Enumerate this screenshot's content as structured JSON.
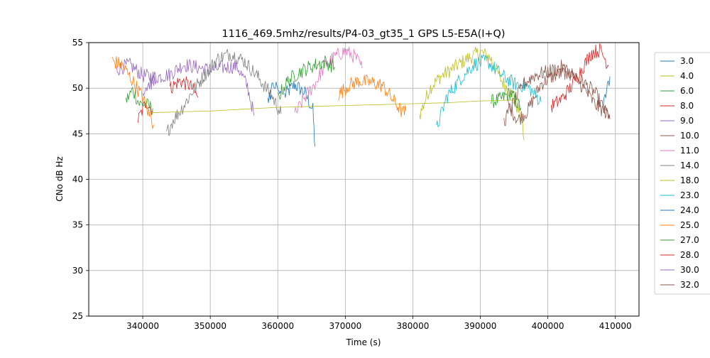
{
  "chart_data": {
    "type": "line",
    "title": "1116_469.5mhz/results/P4-03_gt35_1 GPS L5-E5A(I+Q)",
    "xlabel": "Time (s)",
    "ylabel": "CNo dB Hz",
    "xlim": [
      332000,
      413500
    ],
    "ylim": [
      25,
      55
    ],
    "xticks": [
      340000,
      350000,
      360000,
      370000,
      380000,
      390000,
      400000,
      410000
    ],
    "yticks": [
      25,
      30,
      35,
      40,
      45,
      50,
      55
    ],
    "grid": true,
    "legend_position": "right, outside plot",
    "series": [
      {
        "name": "3.0",
        "color": "#1f77b4",
        "segments": [
          [
            [
              361000,
              49.2
            ],
            [
              362500,
              50.4
            ],
            [
              364000,
              49.5
            ],
            [
              365200,
              47.6
            ],
            [
              365500,
              43.6
            ]
          ],
          [
            [
              408200,
              48
            ],
            [
              409200,
              51.3
            ]
          ]
        ]
      },
      {
        "name": "4.0",
        "color": "#bcbd22",
        "segments": [
          [
            [
              381000,
              47
            ],
            [
              382500,
              50
            ],
            [
              384000,
              51.2
            ],
            [
              386000,
              52.2
            ],
            [
              388000,
              53.2
            ],
            [
              390000,
              54
            ],
            [
              391500,
              53.3
            ],
            [
              393000,
              51
            ],
            [
              394500,
              49.5
            ],
            [
              396000,
              47
            ],
            [
              396500,
              44.3
            ]
          ]
        ]
      },
      {
        "name": "6.0",
        "color": "#2ca02c",
        "segments": [
          [
            [
              337500,
              48.6
            ],
            [
              338500,
              49.8
            ],
            [
              339500,
              48.3
            ],
            [
              340500,
              48.2
            ],
            [
              341500,
              47.8
            ]
          ],
          [
            [
              391500,
              48.5
            ],
            [
              393000,
              48.8
            ],
            [
              394500,
              49.5
            ],
            [
              396000,
              47.8
            ]
          ]
        ]
      },
      {
        "name": "8.0",
        "color": "#d62728",
        "segments": [
          [
            [
              339300,
              46.5
            ],
            [
              340500,
              48.5
            ],
            [
              341500,
              47.5
            ]
          ],
          [
            [
              344000,
              50
            ],
            [
              345500,
              50.8
            ],
            [
              347000,
              50.3
            ],
            [
              348200,
              49
            ]
          ]
        ]
      },
      {
        "name": "9.0",
        "color": "#9467bd",
        "segments": [
          [
            [
              336000,
              52
            ],
            [
              338000,
              52.6
            ],
            [
              340000,
              51.4
            ],
            [
              342000,
              51.2
            ],
            [
              344000,
              51.5
            ],
            [
              346000,
              52.6
            ],
            [
              348000,
              52.3
            ],
            [
              350000,
              52
            ],
            [
              352000,
              52.3
            ],
            [
              354000,
              52.4
            ],
            [
              355500,
              50.2
            ],
            [
              356500,
              47
            ]
          ]
        ]
      },
      {
        "name": "10.0",
        "color": "#8c564b",
        "segments": [
          [
            [
              394000,
              48.4
            ],
            [
              395500,
              46.5
            ],
            [
              397000,
              47.5
            ],
            [
              399000,
              50.5
            ],
            [
              401000,
              51.4
            ],
            [
              403000,
              51.8
            ],
            [
              405000,
              50.8
            ],
            [
              407000,
              49.5
            ],
            [
              408500,
              47.4
            ],
            [
              409200,
              47
            ]
          ]
        ]
      },
      {
        "name": "11.0",
        "color": "#e377c2",
        "segments": [
          [
            [
              362500,
              47
            ],
            [
              364000,
              49
            ],
            [
              365500,
              50.5
            ],
            [
              367000,
              52.5
            ],
            [
              368500,
              53.5
            ],
            [
              370000,
              54.1
            ],
            [
              371500,
              53.4
            ],
            [
              372500,
              52.2
            ]
          ]
        ]
      },
      {
        "name": "14.0",
        "color": "#7f7f7f",
        "segments": [
          [
            [
              343500,
              45
            ],
            [
              344500,
              46.5
            ],
            [
              346000,
              48
            ],
            [
              347500,
              49.8
            ],
            [
              349000,
              51.3
            ],
            [
              351000,
              53.2
            ],
            [
              353000,
              53.8
            ],
            [
              355000,
              53
            ],
            [
              357000,
              51.3
            ],
            [
              359000,
              49.3
            ],
            [
              360500,
              47.2
            ]
          ]
        ]
      },
      {
        "name": "18.0",
        "color": "#bcbd22",
        "segments": [
          [
            [
              341000,
              47.3
            ],
            [
              345000,
              47.4
            ],
            [
              350000,
              47.5
            ],
            [
              355000,
              47.7
            ],
            [
              360000,
              47.9
            ],
            [
              365000,
              48
            ],
            [
              370000,
              48.1
            ],
            [
              375000,
              48.2
            ],
            [
              380000,
              48.3
            ],
            [
              385000,
              48.4
            ],
            [
              390000,
              48.6
            ],
            [
              395000,
              48.7
            ]
          ]
        ]
      },
      {
        "name": "23.0",
        "color": "#17becf",
        "segments": [
          [
            [
              383500,
              45.5
            ],
            [
              385000,
              49
            ],
            [
              387000,
              51
            ],
            [
              389000,
              52.6
            ],
            [
              391000,
              53
            ],
            [
              393000,
              51.5
            ],
            [
              395000,
              50.5
            ],
            [
              397000,
              50.2
            ],
            [
              399000,
              48.5
            ]
          ]
        ]
      },
      {
        "name": "24.0",
        "color": "#1f77b4",
        "segments": [
          [
            [
              358500,
              49
            ],
            [
              359500,
              50.4
            ],
            [
              360500,
              49.3
            ]
          ]
        ]
      },
      {
        "name": "25.0",
        "color": "#ff7f0e",
        "segments": [
          [
            [
              335500,
              53
            ],
            [
              337000,
              52.5
            ],
            [
              338500,
              50.8
            ],
            [
              340000,
              49
            ],
            [
              341000,
              47
            ],
            [
              341600,
              46
            ]
          ],
          [
            [
              369000,
              49.3
            ],
            [
              370500,
              50.3
            ],
            [
              372000,
              50.8
            ],
            [
              374000,
              50.6
            ],
            [
              375500,
              50.3
            ],
            [
              377000,
              48.8
            ],
            [
              378500,
              47.3
            ],
            [
              379000,
              47.5
            ]
          ]
        ]
      },
      {
        "name": "27.0",
        "color": "#2ca02c",
        "segments": [
          [
            [
              360000,
              49
            ],
            [
              361500,
              50.8
            ],
            [
              363000,
              51.7
            ],
            [
              365000,
              52.4
            ],
            [
              367000,
              52.9
            ],
            [
              368500,
              52.3
            ]
          ]
        ]
      },
      {
        "name": "28.0",
        "color": "#d62728",
        "segments": [
          [
            [
              400500,
              48
            ],
            [
              402000,
              48.8
            ],
            [
              403500,
              50.2
            ],
            [
              405000,
              52.1
            ],
            [
              406500,
              53.9
            ],
            [
              407800,
              54.2
            ],
            [
              409000,
              52.4
            ]
          ]
        ]
      },
      {
        "name": "30.0",
        "color": "#9467bd",
        "segments": [
          [
            [
              340000,
              49.7
            ],
            [
              341000,
              50.5
            ],
            [
              342000,
              50.8
            ]
          ]
        ]
      },
      {
        "name": "32.0",
        "color": "#8c564b",
        "segments": [
          [
            [
              393500,
              46.3
            ],
            [
              395000,
              48.5
            ],
            [
              396500,
              50.5
            ],
            [
              398000,
              51.4
            ],
            [
              400000,
              51.8
            ],
            [
              402000,
              52.3
            ],
            [
              404000,
              51.2
            ],
            [
              405500,
              49.8
            ],
            [
              407000,
              48.2
            ],
            [
              408500,
              47.4
            ],
            [
              409200,
              46.6
            ]
          ]
        ]
      }
    ]
  }
}
